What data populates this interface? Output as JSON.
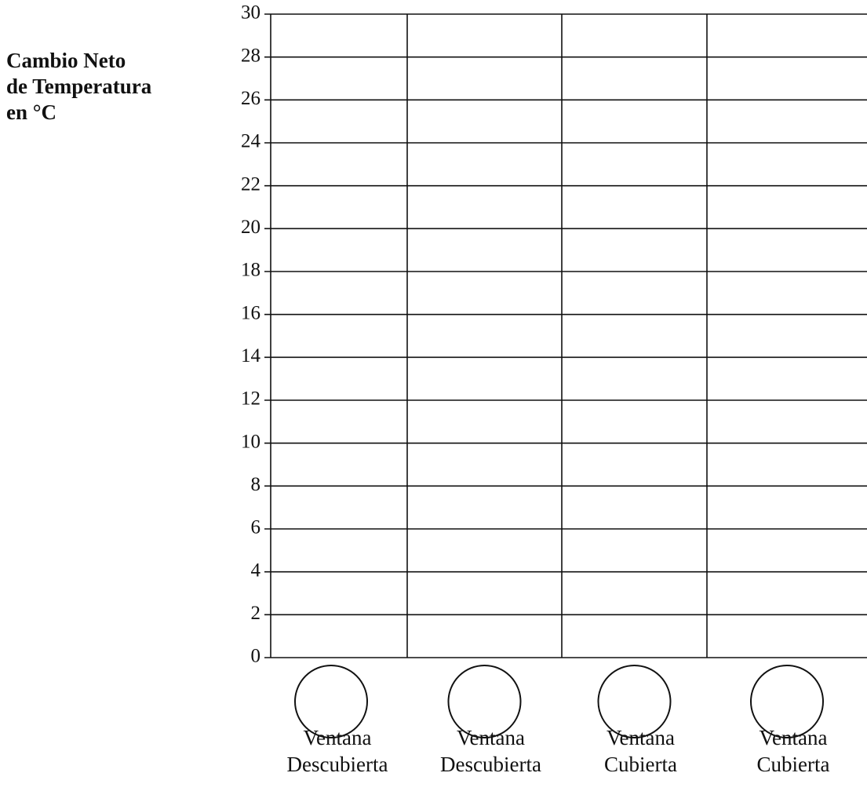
{
  "chart_data": {
    "type": "bar",
    "y_label": [
      "Cambio Neto",
      "de Temperatura",
      "en °C"
    ],
    "categories": [
      [
        "Ventana",
        "Descubierta"
      ],
      [
        "Ventana",
        "Descubierta"
      ],
      [
        "Ventana",
        "Cubierta"
      ],
      [
        "Ventana",
        "Cubierta"
      ]
    ],
    "ylim": [
      0,
      30
    ],
    "yticks": [
      0,
      2,
      4,
      6,
      8,
      10,
      12,
      14,
      16,
      18,
      20,
      22,
      24,
      26,
      28,
      30
    ],
    "grid": true
  }
}
